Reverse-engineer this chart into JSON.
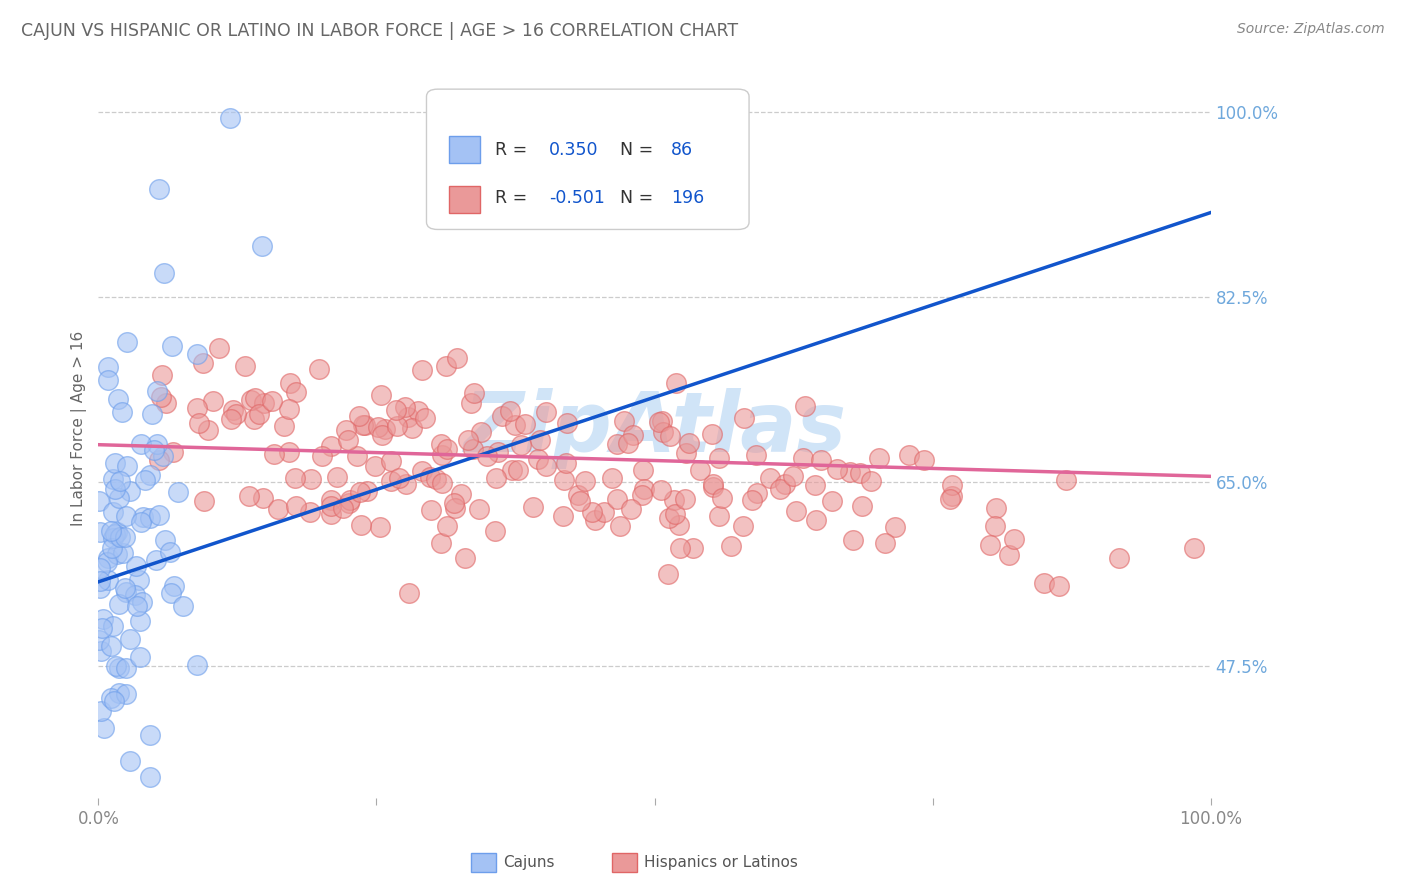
{
  "title": "CAJUN VS HISPANIC OR LATINO IN LABOR FORCE | AGE > 16 CORRELATION CHART",
  "source": "Source: ZipAtlas.com",
  "ylabel": "In Labor Force | Age > 16",
  "ymin": 0.35,
  "ymax": 1.05,
  "xmin": 0.0,
  "xmax": 1.0,
  "cajun_R": 0.35,
  "cajun_N": 86,
  "hispanic_R": -0.501,
  "hispanic_N": 196,
  "cajun_dot_color": "#a4c2f4",
  "cajun_edge_color": "#6d9eeb",
  "hispanic_dot_color": "#ea9999",
  "hispanic_edge_color": "#e06666",
  "trend_cajun_color": "#1155cc",
  "trend_hispanic_color": "#e06699",
  "legend_text_color": "#1155cc",
  "legend_label_color": "#333333",
  "title_color": "#666666",
  "source_color": "#888888",
  "axis_tick_color": "#6fa8dc",
  "watermark_color": "#d0e4f7",
  "grid_color": "#cccccc",
  "background_color": "#ffffff",
  "ytick_positions": [
    0.475,
    0.65,
    0.825,
    1.0
  ],
  "ytick_labels": [
    "47.5%",
    "65.0%",
    "82.5%",
    "100.0%"
  ],
  "grid_lines": [
    1.0,
    0.825,
    0.65,
    0.475
  ],
  "cajun_line_y0": 0.555,
  "cajun_line_y1": 0.905,
  "hispanic_line_y0": 0.685,
  "hispanic_line_y1": 0.655
}
